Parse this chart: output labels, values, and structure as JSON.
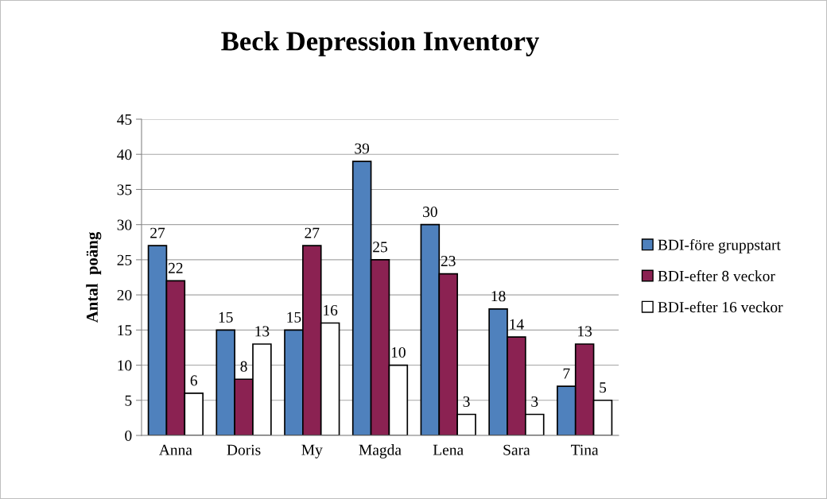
{
  "chart_data": {
    "type": "bar",
    "title": "Beck Depression Inventory",
    "ylabel": "Antal  poäng",
    "categories": [
      "Anna",
      "Doris",
      "My",
      "Magda",
      "Lena",
      "Sara",
      "Tina"
    ],
    "series": [
      {
        "name": "BDI-före gruppstart",
        "color": "#4f81bd",
        "values": [
          27,
          15,
          15,
          39,
          30,
          18,
          7
        ]
      },
      {
        "name": "BDI-efter 8 veckor",
        "color": "#8b2252",
        "values": [
          22,
          8,
          27,
          25,
          23,
          14,
          13
        ]
      },
      {
        "name": "BDI-efter 16 veckor",
        "color": "#ffffff",
        "values": [
          6,
          13,
          16,
          10,
          3,
          3,
          5
        ]
      }
    ],
    "ylim": [
      0,
      45
    ],
    "yticks": [
      0,
      5,
      10,
      15,
      20,
      25,
      30,
      35,
      40,
      45
    ],
    "grid": "y",
    "legend": "right",
    "data_labels": true
  }
}
